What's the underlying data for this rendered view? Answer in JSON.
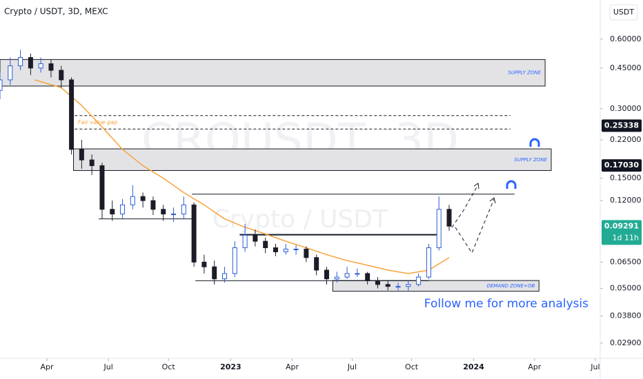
{
  "chart_data": {
    "type": "candlestick",
    "title": "Crypto / USDT, 3D, MEXC",
    "currency": "USDT",
    "watermark": [
      "CROUSDT, 3D",
      "Crypto / USDT"
    ],
    "log_scale": true,
    "xlim": [
      0,
      29.4
    ],
    "xticks": [
      {
        "value": 2.3,
        "label": "Apr"
      },
      {
        "value": 5.31,
        "label": "Jul"
      },
      {
        "value": 8.25,
        "label": "Oct"
      },
      {
        "value": 11.3,
        "label": "2023"
      },
      {
        "value": 14.31,
        "label": "Apr"
      },
      {
        "value": 17.25,
        "label": "Jul"
      },
      {
        "value": 20.16,
        "label": "Oct"
      },
      {
        "value": 23.2,
        "label": "2024"
      },
      {
        "value": 26.18,
        "label": "Apr"
      },
      {
        "value": 29.16,
        "label": "Jul"
      }
    ],
    "ylim": [
      0.0249,
      0.887
    ],
    "yticks": [
      {
        "value": 0.6,
        "label": "0.60000"
      },
      {
        "value": 0.45,
        "label": "0.45000"
      },
      {
        "value": 0.3,
        "label": "0.30000"
      },
      {
        "value": 0.22,
        "label": "0.22000"
      },
      {
        "value": 0.15,
        "label": "0.15000"
      },
      {
        "value": 0.12,
        "label": "0.12000"
      },
      {
        "value": 0.065,
        "label": "0.06500"
      },
      {
        "value": 0.05,
        "label": "0.05000"
      },
      {
        "value": 0.038,
        "label": "0.03800"
      },
      {
        "value": 0.029,
        "label": "0.02900"
      }
    ],
    "up_color": "#2a5bd7",
    "down_color": "#1c1c28",
    "x": [
      0,
      0.5,
      1,
      1.5,
      2,
      2.5,
      3,
      3.5,
      4,
      4.5,
      5,
      5.5,
      6,
      6.5,
      7,
      7.5,
      8,
      8.5,
      9,
      9.5,
      10,
      10.5,
      11,
      11.5,
      12,
      12.5,
      13,
      13.5,
      14,
      14.5,
      15,
      15.5,
      16,
      16.5,
      17,
      17.5,
      18,
      18.5,
      19,
      19.5,
      20,
      20.5,
      21,
      21.5,
      22
    ],
    "open": [
      0.36,
      0.4,
      0.46,
      0.5,
      0.45,
      0.47,
      0.44,
      0.4,
      0.2,
      0.18,
      0.17,
      0.11,
      0.105,
      0.115,
      0.125,
      0.12,
      0.11,
      0.105,
      0.105,
      0.115,
      0.065,
      0.062,
      0.055,
      0.058,
      0.075,
      0.085,
      0.08,
      0.075,
      0.072,
      0.074,
      0.074,
      0.068,
      0.06,
      0.055,
      0.056,
      0.058,
      0.058,
      0.054,
      0.052,
      0.051,
      0.051,
      0.052,
      0.056,
      0.075,
      0.11
    ],
    "high": [
      0.43,
      0.5,
      0.54,
      0.52,
      0.5,
      0.49,
      0.46,
      0.41,
      0.22,
      0.19,
      0.175,
      0.12,
      0.122,
      0.14,
      0.13,
      0.125,
      0.115,
      0.112,
      0.125,
      0.118,
      0.07,
      0.066,
      0.062,
      0.08,
      0.095,
      0.09,
      0.083,
      0.078,
      0.078,
      0.077,
      0.076,
      0.07,
      0.062,
      0.059,
      0.062,
      0.061,
      0.059,
      0.056,
      0.054,
      0.053,
      0.054,
      0.058,
      0.078,
      0.125,
      0.115
    ],
    "low": [
      0.33,
      0.38,
      0.44,
      0.42,
      0.43,
      0.41,
      0.37,
      0.19,
      0.165,
      0.155,
      0.1,
      0.098,
      0.1,
      0.11,
      0.112,
      0.104,
      0.098,
      0.097,
      0.1,
      0.062,
      0.058,
      0.052,
      0.053,
      0.056,
      0.072,
      0.076,
      0.071,
      0.069,
      0.07,
      0.07,
      0.065,
      0.057,
      0.052,
      0.053,
      0.055,
      0.056,
      0.052,
      0.05,
      0.049,
      0.049,
      0.049,
      0.051,
      0.055,
      0.073,
      0.089
    ],
    "close": [
      0.4,
      0.46,
      0.5,
      0.45,
      0.47,
      0.44,
      0.4,
      0.2,
      0.18,
      0.17,
      0.11,
      0.105,
      0.115,
      0.125,
      0.12,
      0.11,
      0.105,
      0.105,
      0.115,
      0.065,
      0.062,
      0.055,
      0.058,
      0.075,
      0.085,
      0.08,
      0.075,
      0.072,
      0.074,
      0.074,
      0.068,
      0.06,
      0.055,
      0.056,
      0.058,
      0.058,
      0.054,
      0.052,
      0.051,
      0.051,
      0.052,
      0.056,
      0.075,
      0.11,
      0.093
    ],
    "moving_average": {
      "color": "#f7a23b",
      "x": [
        1.7,
        3,
        4,
        5,
        6,
        7,
        8,
        9,
        10,
        11,
        12,
        13,
        14,
        15,
        16,
        17,
        18,
        19,
        20,
        21,
        22
      ],
      "values": [
        0.4,
        0.37,
        0.31,
        0.25,
        0.2,
        0.17,
        0.15,
        0.13,
        0.115,
        0.1,
        0.092,
        0.086,
        0.08,
        0.075,
        0.07,
        0.066,
        0.063,
        0.06,
        0.058,
        0.06,
        0.068
      ]
    },
    "zones": [
      {
        "label": "SUPPLY ZONE",
        "x": [
          0,
          26.7
        ],
        "y": [
          0.376,
          0.49
        ]
      },
      {
        "label": "SUPPLY ZONE",
        "x": [
          3.6,
          27
        ],
        "y": [
          0.162,
          0.201
        ]
      },
      {
        "label": "DEMAND ZONE+OB",
        "x": [
          16.3,
          26.4
        ],
        "y": [
          0.0486,
          0.0541
        ]
      }
    ],
    "levels": [
      {
        "x": [
          3.66,
          25
        ],
        "y": 0.28,
        "style": "dashed"
      },
      {
        "x": [
          3.66,
          25
        ],
        "y": 0.245,
        "style": "dashed"
      },
      {
        "x": [
          9.4,
          25.2
        ],
        "y": 0.128,
        "style": "thin"
      },
      {
        "x": [
          4.84,
          9.4
        ],
        "y": 0.1,
        "style": "thin"
      },
      {
        "x": [
          11.74,
          21.4
        ],
        "y": 0.0854,
        "style": "thick"
      },
      {
        "x": [
          9.57,
          21
        ],
        "y": 0.054,
        "style": "thin"
      }
    ],
    "fair_value_gap": {
      "label": "Fair value gap",
      "x": 3.82,
      "y": 0.262,
      "color": "#f7a23b"
    },
    "price_labels": [
      {
        "value": 0.25338,
        "label": "0.25338",
        "color": "#131722"
      },
      {
        "value": 0.1703,
        "label": "0.17030",
        "color": "#131722"
      },
      {
        "value": 0.09291,
        "label": "0.09291",
        "color": "#22ab94"
      }
    ],
    "countdown": "1d 11h",
    "note": "Follow me for more analysis"
  }
}
